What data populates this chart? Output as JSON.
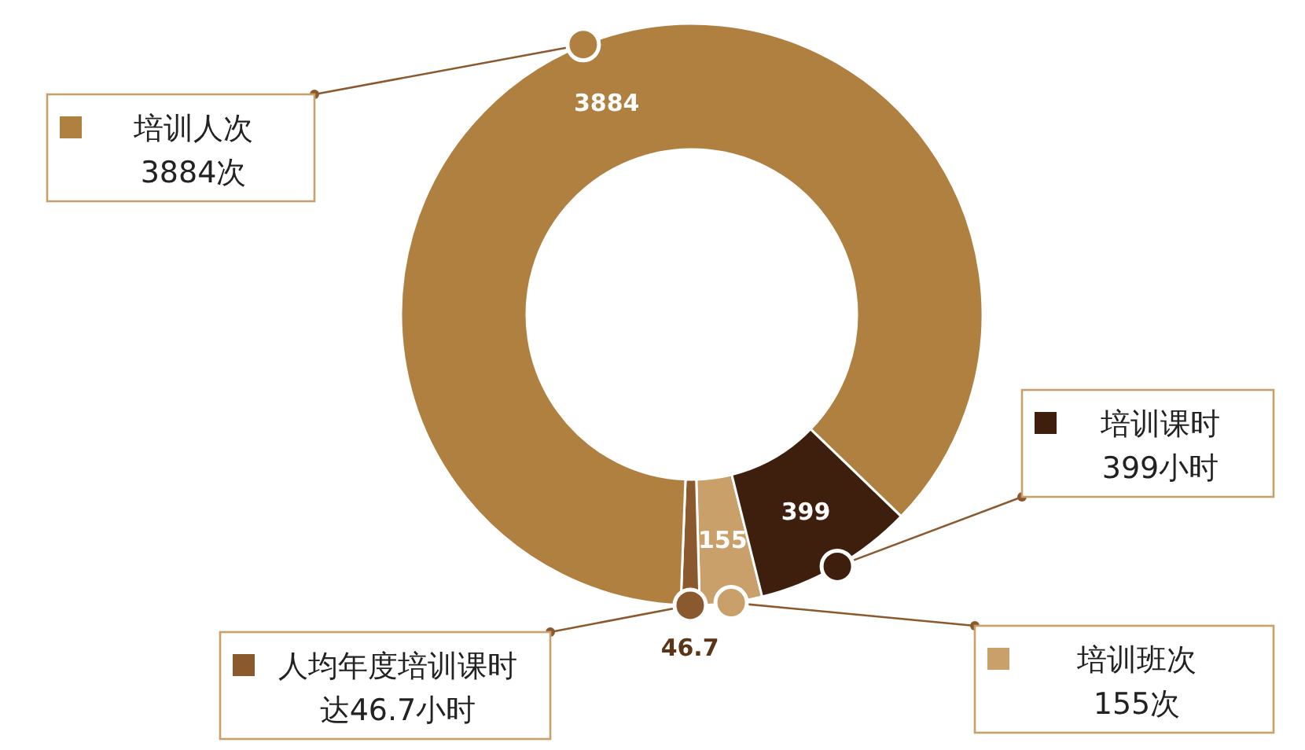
{
  "chart_data": {
    "type": "donut",
    "categories": [
      "培训班次",
      "人均年度培训课时",
      "培训人次",
      "培训课时"
    ],
    "values": [
      155,
      46.7,
      3884,
      399
    ],
    "colors": [
      "#c9a06a",
      "#8a5a2e",
      "#b08040",
      "#3e1f0e"
    ],
    "data_labels": true,
    "legend": "bottom left",
    "annotations": [
      "155次",
      "达46.7小时",
      "3884次",
      "399小时"
    ]
  }
}
